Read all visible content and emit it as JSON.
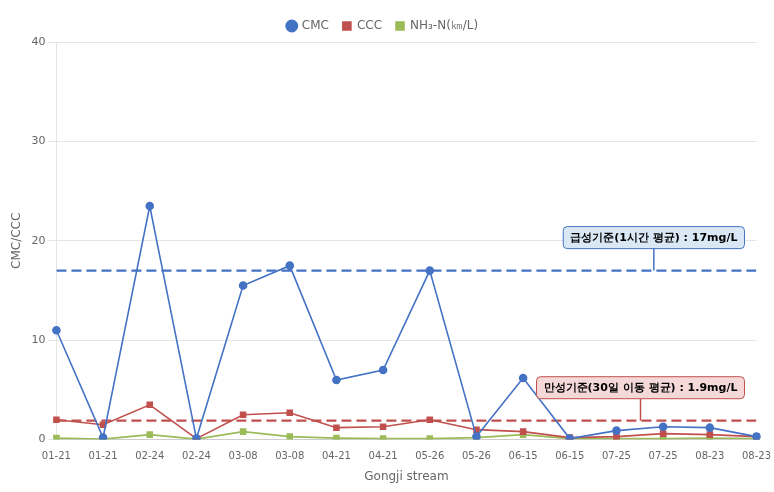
{
  "chart_data": {
    "type": "line",
    "x_label": "Gongji stream",
    "y_label": "CMC/CCC",
    "categories": [
      "01-21",
      "01-21",
      "02-24",
      "02-24",
      "03-08",
      "03-08",
      "04-21",
      "04-21",
      "05-26",
      "05-26",
      "06-15",
      "06-15",
      "07-25",
      "07-25",
      "08-23",
      "08-23"
    ],
    "series": [
      {
        "name": "CMC",
        "color": "#4472C4",
        "marker": "circle",
        "line_style": "solid",
        "values": [
          11.0,
          0.2,
          23.5,
          0.1,
          15.5,
          17.5,
          6.0,
          7.0,
          17.0,
          0.3,
          6.2,
          0.1,
          0.9,
          1.3,
          1.2,
          0.3
        ]
      },
      {
        "name": "CCC",
        "color": "#C0504D",
        "marker": "square",
        "line_style": "solid",
        "values": [
          2.0,
          1.5,
          3.5,
          0.1,
          2.5,
          2.7,
          1.2,
          1.3,
          2.0,
          1.0,
          0.8,
          0.2,
          0.3,
          0.6,
          0.5,
          0.3
        ]
      },
      {
        "name": "NH₃-N(㎞/L)",
        "color": "#9BBB59",
        "marker": "square",
        "line_style": "solid",
        "values": [
          0.15,
          0.05,
          0.5,
          0.05,
          0.8,
          0.3,
          0.15,
          0.1,
          0.1,
          0.2,
          0.5,
          0.1,
          0.1,
          0.1,
          0.15,
          0.1
        ]
      }
    ],
    "annotations": [
      {
        "y": 17.0,
        "text": "급성기준(1시간 평균) : 17mg/L",
        "color": "#4472C4",
        "box_color": "#DAE8F5",
        "line_style": "dashed"
      },
      {
        "y": 1.9,
        "text": "만성기준(30일 이동 평균) : 1.9mg/L",
        "color": "#C0504D",
        "box_color": "#F5D8D8",
        "line_style": "dashed"
      }
    ],
    "ylim": [
      0,
      40
    ],
    "yticks": [
      0,
      10,
      20,
      30,
      40
    ],
    "grid": "y",
    "legend": "top"
  }
}
